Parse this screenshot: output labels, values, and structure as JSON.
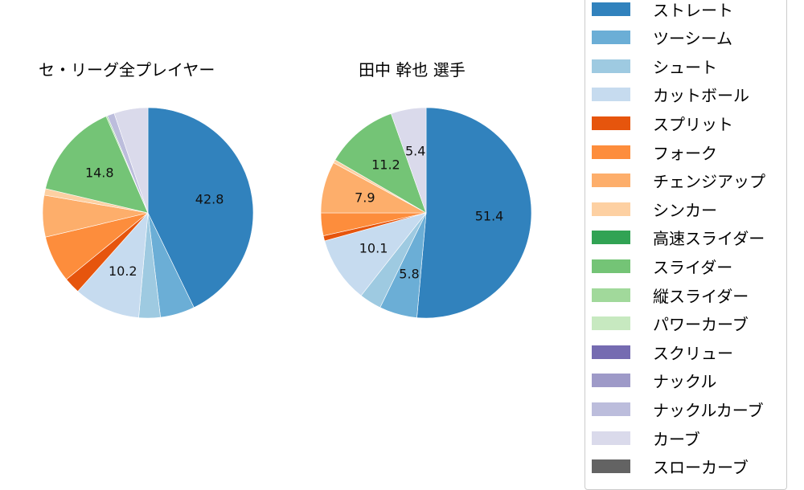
{
  "chart_data": [
    {
      "type": "pie",
      "title": "セ・リーグ全プレイヤー",
      "start_angle": 90,
      "direction": "clockwise",
      "slices": [
        {
          "label": "ストレート",
          "value": 42.8,
          "color": "#3182bd",
          "show_label": true
        },
        {
          "label": "ツーシーム",
          "value": 5.3,
          "color": "#6baed6",
          "show_label": false
        },
        {
          "label": "シュート",
          "value": 3.3,
          "color": "#9ecae1",
          "show_label": false
        },
        {
          "label": "カットボール",
          "value": 10.2,
          "color": "#c6dbef",
          "show_label": true
        },
        {
          "label": "スプリット",
          "value": 2.5,
          "color": "#e6550d",
          "show_label": false
        },
        {
          "label": "フォーク",
          "value": 7.2,
          "color": "#fd8d3c",
          "show_label": false
        },
        {
          "label": "チェンジアップ",
          "value": 6.4,
          "color": "#fdae6b",
          "show_label": false
        },
        {
          "label": "シンカー",
          "value": 1.0,
          "color": "#fdd0a2",
          "show_label": false
        },
        {
          "label": "スライダー",
          "value": 14.8,
          "color": "#74c476",
          "show_label": true
        },
        {
          "label": "縦スライダー",
          "value": 0.2,
          "color": "#a1d99b",
          "show_label": false
        },
        {
          "label": "ナックルカーブ",
          "value": 1.1,
          "color": "#bcbddc",
          "show_label": false
        },
        {
          "label": "カーブ",
          "value": 5.2,
          "color": "#dadaeb",
          "show_label": false
        }
      ]
    },
    {
      "type": "pie",
      "title": "田中 幹也  選手",
      "start_angle": 90,
      "direction": "clockwise",
      "slices": [
        {
          "label": "ストレート",
          "value": 51.4,
          "color": "#3182bd",
          "show_label": true
        },
        {
          "label": "ツーシーム",
          "value": 5.8,
          "color": "#6baed6",
          "show_label": true
        },
        {
          "label": "シュート",
          "value": 3.4,
          "color": "#9ecae1",
          "show_label": false
        },
        {
          "label": "カットボール",
          "value": 10.1,
          "color": "#c6dbef",
          "show_label": true
        },
        {
          "label": "スプリット",
          "value": 0.8,
          "color": "#e6550d",
          "show_label": false
        },
        {
          "label": "フォーク",
          "value": 3.5,
          "color": "#fd8d3c",
          "show_label": false
        },
        {
          "label": "チェンジアップ",
          "value": 7.9,
          "color": "#fdae6b",
          "show_label": true
        },
        {
          "label": "シンカー",
          "value": 0.5,
          "color": "#fdd0a2",
          "show_label": false
        },
        {
          "label": "スライダー",
          "value": 11.2,
          "color": "#74c476",
          "show_label": true
        },
        {
          "label": "カーブ",
          "value": 5.4,
          "color": "#dadaeb",
          "show_label": true
        }
      ]
    }
  ],
  "legend": {
    "items": [
      {
        "label": "ストレート",
        "color": "#3182bd"
      },
      {
        "label": "ツーシーム",
        "color": "#6baed6"
      },
      {
        "label": "シュート",
        "color": "#9ecae1"
      },
      {
        "label": "カットボール",
        "color": "#c6dbef"
      },
      {
        "label": "スプリット",
        "color": "#e6550d"
      },
      {
        "label": "フォーク",
        "color": "#fd8d3c"
      },
      {
        "label": "チェンジアップ",
        "color": "#fdae6b"
      },
      {
        "label": "シンカー",
        "color": "#fdd0a2"
      },
      {
        "label": "高速スライダー",
        "color": "#31a354"
      },
      {
        "label": "スライダー",
        "color": "#74c476"
      },
      {
        "label": "縦スライダー",
        "color": "#a1d99b"
      },
      {
        "label": "パワーカーブ",
        "color": "#c7e9c0"
      },
      {
        "label": "スクリュー",
        "color": "#756bb1"
      },
      {
        "label": "ナックル",
        "color": "#9e9ac8"
      },
      {
        "label": "ナックルカーブ",
        "color": "#bcbddc"
      },
      {
        "label": "カーブ",
        "color": "#dadaeb"
      },
      {
        "label": "スローカーブ",
        "color": "#636363"
      }
    ]
  }
}
